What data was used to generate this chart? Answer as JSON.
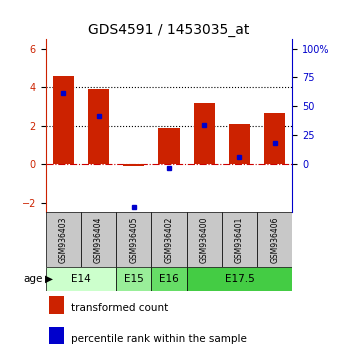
{
  "title": "GDS4591 / 1453035_at",
  "samples": [
    "GSM936403",
    "GSM936404",
    "GSM936405",
    "GSM936402",
    "GSM936400",
    "GSM936401",
    "GSM936406"
  ],
  "red_values": [
    4.6,
    3.9,
    -0.1,
    1.9,
    3.2,
    2.1,
    2.65
  ],
  "blue_values": [
    3.7,
    2.5,
    -2.2,
    -0.2,
    2.05,
    0.35,
    1.1
  ],
  "ylim_left": [
    -2.5,
    6.5
  ],
  "ylim_right": [
    -2.5,
    6.5
  ],
  "y_left_ticks": [
    -2,
    0,
    2,
    4,
    6
  ],
  "y_right_ticks": [
    0,
    1.5,
    3.0,
    4.5,
    6.0
  ],
  "y_right_tick_labels": [
    "0",
    "25",
    "50",
    "75",
    "100%"
  ],
  "hlines": [
    4.0,
    2.0
  ],
  "hline_zero_color": "#cc0000",
  "hline_dotted_color": "black",
  "bar_color": "#cc2200",
  "dot_color": "#0000cc",
  "age_groups": [
    {
      "label": "E14",
      "samples": [
        "GSM936403",
        "GSM936404"
      ],
      "color": "#ccffcc"
    },
    {
      "label": "E15",
      "samples": [
        "GSM936405"
      ],
      "color": "#99ee99"
    },
    {
      "label": "E16",
      "samples": [
        "GSM936402"
      ],
      "color": "#66dd66"
    },
    {
      "label": "E17.5",
      "samples": [
        "GSM936400",
        "GSM936401",
        "GSM936406"
      ],
      "color": "#44cc44"
    }
  ],
  "legend_red_label": "transformed count",
  "legend_blue_label": "percentile rank within the sample",
  "age_label": "age",
  "bar_width": 0.6,
  "title_fontsize": 10,
  "tick_fontsize": 7,
  "label_fontsize": 7.5,
  "sample_fontsize": 5.5,
  "gsm_box_color": "#c8c8c8",
  "spine_color": "black"
}
